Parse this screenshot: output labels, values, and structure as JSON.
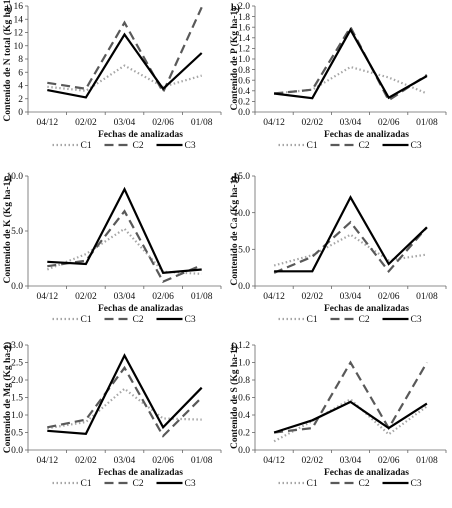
{
  "series_styles": [
    {
      "name": "C1",
      "color": "#a6a6a6",
      "dash": "1.5,2.5",
      "width": 2.2
    },
    {
      "name": "C2",
      "color": "#595959",
      "dash": "9,5",
      "width": 2.2
    },
    {
      "name": "C3",
      "color": "#000000",
      "dash": "",
      "width": 2.2
    }
  ],
  "chart_data": [
    {
      "type": "line",
      "panel": "a)",
      "categories": [
        "04/12",
        "02/02",
        "03/04",
        "02/06",
        "01/08"
      ],
      "ylabel": "Contenido de N total (Kg ha-1)",
      "xlabel": "Fechas de analizadas",
      "ylim": [
        0,
        16
      ],
      "yticks": [
        "0",
        "2",
        "4",
        "6",
        "8",
        "10",
        "12",
        "14",
        "16"
      ],
      "series": [
        {
          "name": "C1",
          "values": [
            3.8,
            3.2,
            7.0,
            3.8,
            5.5
          ]
        },
        {
          "name": "C2",
          "values": [
            4.4,
            3.5,
            13.5,
            3.0,
            15.8
          ]
        },
        {
          "name": "C3",
          "values": [
            3.3,
            2.2,
            11.7,
            3.5,
            8.9
          ]
        }
      ]
    },
    {
      "type": "line",
      "panel": "b)",
      "categories": [
        "04/12",
        "02/02",
        "03/04",
        "02/06",
        "01/08"
      ],
      "ylabel": "Contenido de P (Kg ha-1)",
      "xlabel": "Fechas de analizadas",
      "ylim": [
        0,
        2
      ],
      "yticks": [
        "0.0",
        "0.2",
        "0.4",
        "0.6",
        "0.8",
        "1.0",
        "1.2",
        "1.4",
        "1.6",
        "1.8",
        "2.0"
      ],
      "series": [
        {
          "name": "C1",
          "values": [
            0.35,
            0.42,
            0.85,
            0.65,
            0.35
          ]
        },
        {
          "name": "C2",
          "values": [
            0.35,
            0.42,
            1.6,
            0.22,
            0.7
          ]
        },
        {
          "name": "C3",
          "values": [
            0.35,
            0.26,
            1.55,
            0.27,
            0.68
          ]
        }
      ]
    },
    {
      "type": "line",
      "panel": "c)",
      "categories": [
        "04/12",
        "02/02",
        "03/04",
        "02/06",
        "01/08"
      ],
      "ylabel": "Contenido de K (Kg ha-1)",
      "xlabel": "Fechas de analizadas",
      "ylim": [
        0,
        10
      ],
      "yticks": [
        "0.0",
        "5.0",
        "10.0"
      ],
      "series": [
        {
          "name": "C1",
          "values": [
            1.5,
            2.9,
            5.2,
            1.3,
            1.1
          ]
        },
        {
          "name": "C2",
          "values": [
            1.8,
            2.3,
            6.8,
            0.4,
            1.9
          ]
        },
        {
          "name": "C3",
          "values": [
            2.2,
            2.0,
            8.8,
            1.2,
            1.5
          ]
        }
      ]
    },
    {
      "type": "line",
      "panel": "d)",
      "categories": [
        "04/12",
        "02/02",
        "03/04",
        "02/06",
        "01/08"
      ],
      "ylabel": "Contenido de Ca (Kg ha-1)",
      "xlabel": "Fechas de analizadas",
      "ylim": [
        0,
        15
      ],
      "yticks": [
        "0.0",
        "5.0",
        "10.0",
        "15.0"
      ],
      "series": [
        {
          "name": "C1",
          "values": [
            2.8,
            4.2,
            7.0,
            3.5,
            4.3
          ]
        },
        {
          "name": "C2",
          "values": [
            1.8,
            4.0,
            8.7,
            2.0,
            8.0
          ]
        },
        {
          "name": "C3",
          "values": [
            2.0,
            2.0,
            12.1,
            3.0,
            8.0
          ]
        }
      ]
    },
    {
      "type": "line",
      "panel": "e)",
      "categories": [
        "04/12",
        "02/02",
        "03/04",
        "02/06",
        "01/08"
      ],
      "ylabel": "Contenido de Mg (Kg ha-1)",
      "xlabel": "Fechas de analizadas",
      "ylim": [
        0,
        3
      ],
      "yticks": [
        "0.0",
        "0.5",
        "1.0",
        "1.5",
        "2.0",
        "2.5",
        "3.0"
      ],
      "series": [
        {
          "name": "C1",
          "values": [
            0.62,
            0.8,
            1.75,
            0.9,
            0.87
          ]
        },
        {
          "name": "C2",
          "values": [
            0.65,
            0.87,
            2.35,
            0.4,
            1.5
          ]
        },
        {
          "name": "C3",
          "values": [
            0.55,
            0.46,
            2.7,
            0.65,
            1.78
          ]
        }
      ]
    },
    {
      "type": "line",
      "panel": "f)",
      "categories": [
        "04/12",
        "02/02",
        "03/04",
        "02/06",
        "01/08"
      ],
      "ylabel": "Contenido de S (Kg ha-1)",
      "xlabel": "Fechas de analizadas",
      "ylim": [
        0,
        1.2
      ],
      "yticks": [
        "0.0",
        "0.2",
        "0.4",
        "0.6",
        "0.8",
        "1.0",
        "1.2"
      ],
      "series": [
        {
          "name": "C1",
          "values": [
            0.1,
            0.33,
            0.58,
            0.18,
            0.5
          ]
        },
        {
          "name": "C2",
          "values": [
            0.2,
            0.25,
            1.0,
            0.25,
            1.0
          ]
        },
        {
          "name": "C3",
          "values": [
            0.2,
            0.34,
            0.55,
            0.25,
            0.53
          ]
        }
      ]
    }
  ]
}
